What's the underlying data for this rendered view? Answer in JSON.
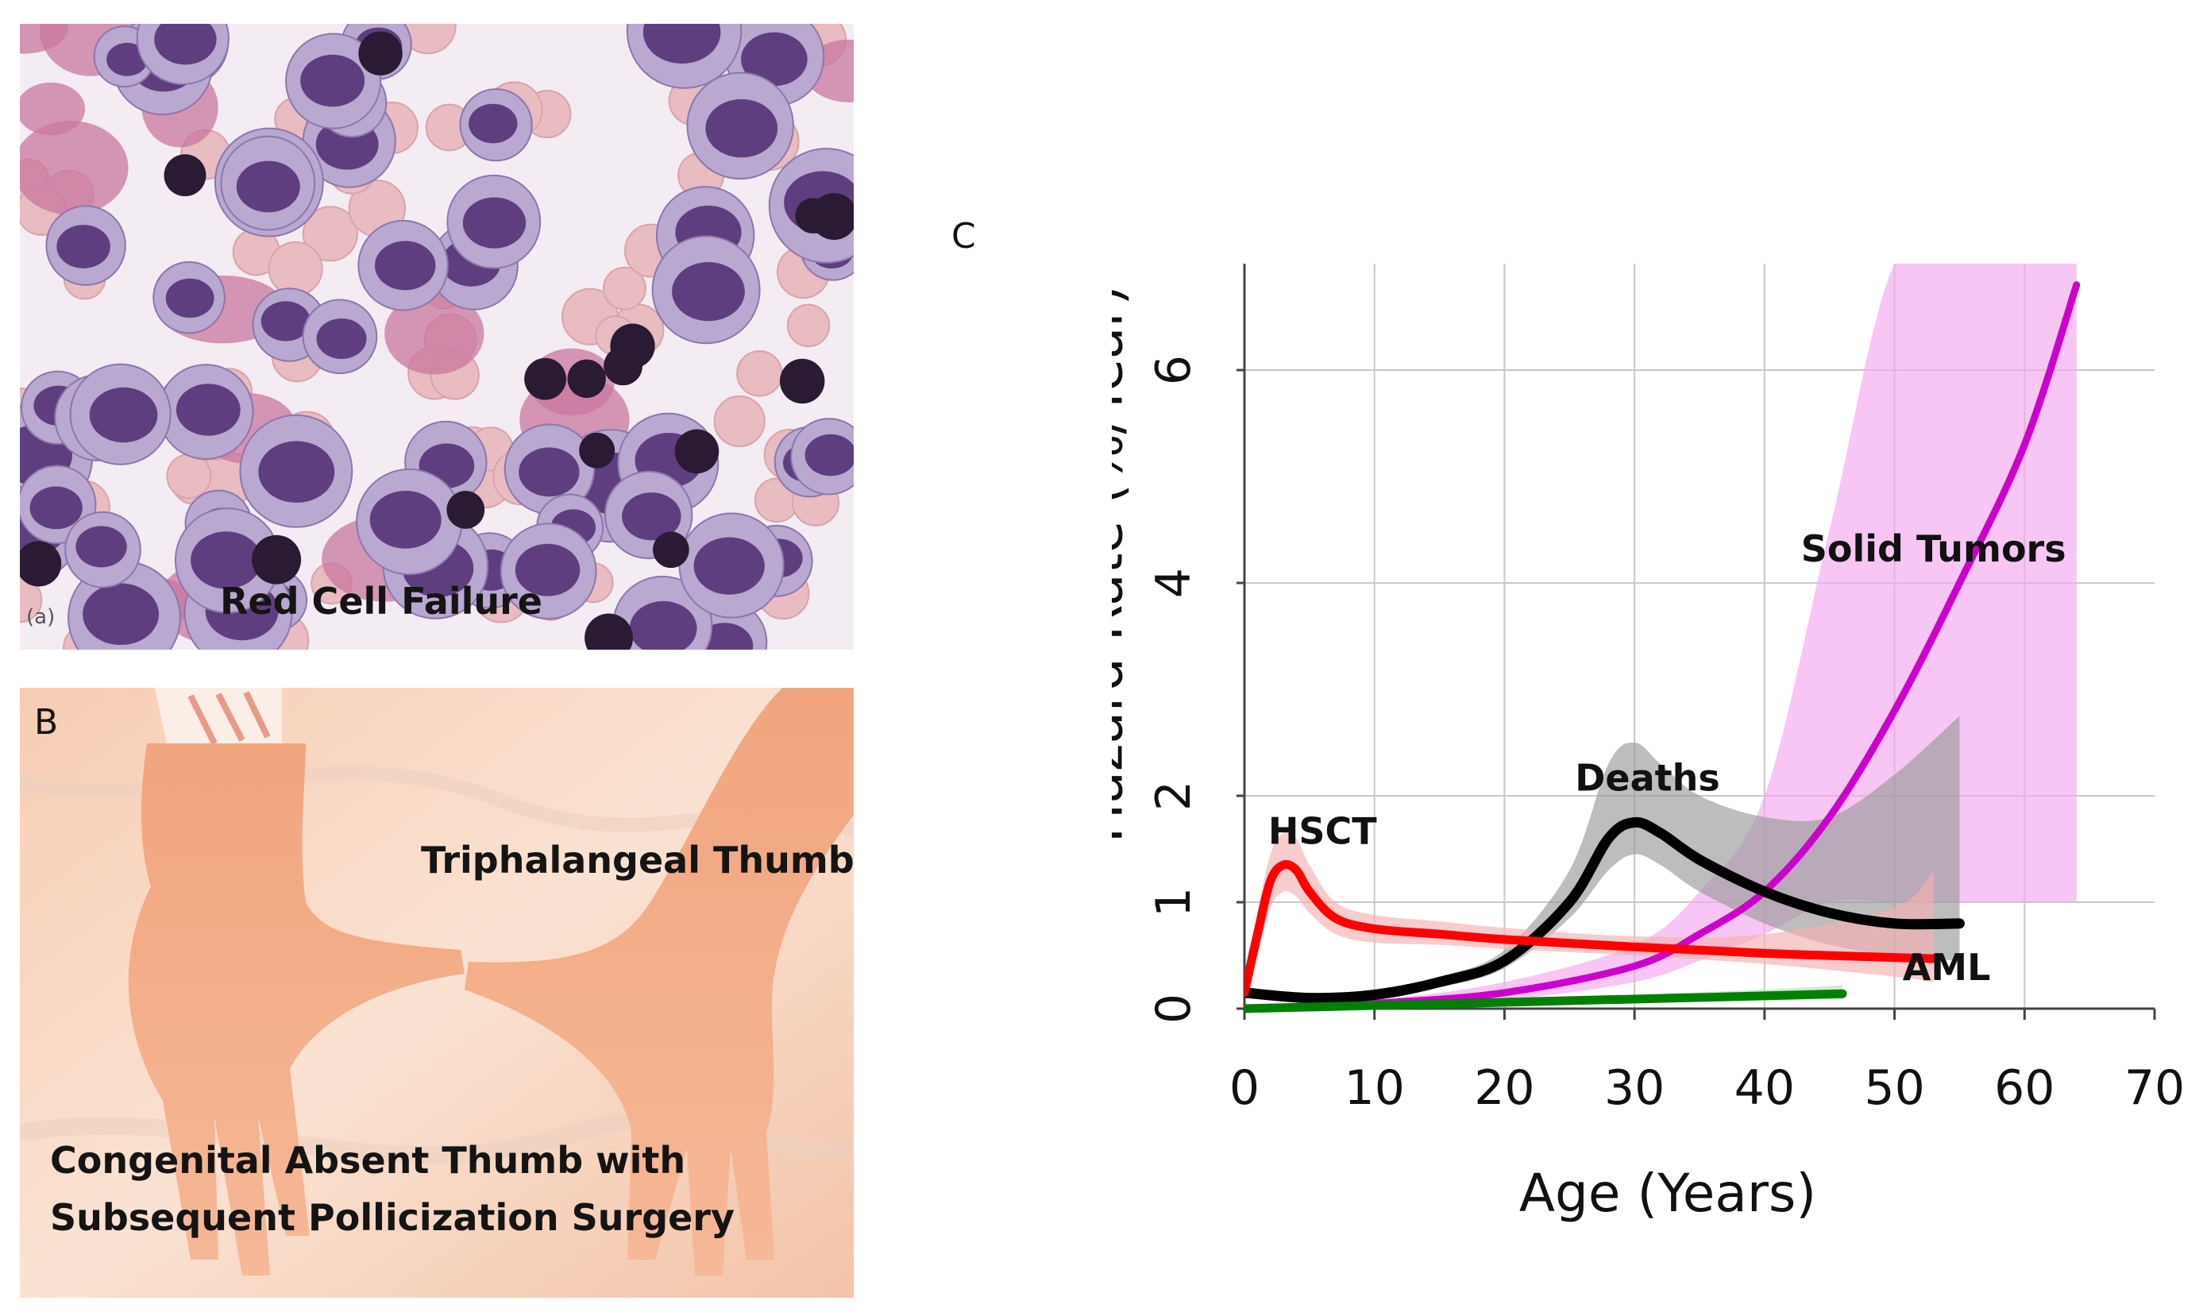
{
  "panels": {
    "a": {
      "letter": "A",
      "sublabel": "(a)",
      "caption": "Red Cell Failure"
    },
    "b": {
      "letter": "B",
      "caption_top": "Triphalangeal Thumb",
      "caption_bottom_1": "Congenital Absent Thumb with",
      "caption_bottom_2": "Subsequent Pollicization Surgery"
    },
    "c": {
      "letter": "C"
    }
  },
  "chart_data": {
    "type": "line",
    "xlabel": "Age (Years)",
    "ylabel": "Hazard Rate (%/Year)",
    "xlim": [
      0,
      70
    ],
    "x_ticks": [
      0,
      10,
      20,
      30,
      40,
      50,
      60,
      70
    ],
    "y_ticks": [
      0,
      1,
      2,
      4,
      6
    ],
    "grid": true,
    "series": [
      {
        "name": "Solid Tumors",
        "color": "#cc00cc",
        "band_color": "#f2a8ee",
        "x": [
          0,
          10,
          20,
          30,
          35,
          40,
          45,
          50,
          55,
          60,
          64
        ],
        "y": [
          0.0,
          0.05,
          0.15,
          0.4,
          0.7,
          1.1,
          1.8,
          2.8,
          4.0,
          5.3,
          6.8
        ],
        "lower": [
          0.0,
          0.02,
          0.08,
          0.25,
          0.45,
          0.7,
          1.0,
          1.0,
          1.0,
          1.0,
          1.0
        ],
        "upper": [
          0.0,
          0.08,
          0.25,
          0.6,
          1.1,
          2.0,
          4.5,
          7.0,
          7.0,
          7.0,
          7.0
        ]
      },
      {
        "name": "Deaths",
        "color": "#000000",
        "band_color": "#9a9a9a",
        "x": [
          0,
          5,
          10,
          15,
          20,
          25,
          28,
          30,
          32,
          35,
          40,
          45,
          50,
          55
        ],
        "y": [
          0.15,
          0.1,
          0.13,
          0.25,
          0.45,
          1.0,
          1.6,
          1.75,
          1.65,
          1.4,
          1.1,
          0.9,
          0.8,
          0.8
        ],
        "lower": [
          0.1,
          0.07,
          0.1,
          0.2,
          0.38,
          0.85,
          1.3,
          1.45,
          1.35,
          1.1,
          0.8,
          0.6,
          0.5,
          0.45
        ],
        "upper": [
          0.2,
          0.14,
          0.18,
          0.3,
          0.55,
          1.3,
          2.3,
          2.5,
          2.3,
          2.0,
          1.8,
          1.8,
          2.2,
          2.75
        ]
      },
      {
        "name": "HSCT",
        "color": "#ff0000",
        "band_color": "#f5b0b0",
        "x": [
          0,
          1,
          2,
          3,
          4,
          5,
          7,
          10,
          15,
          20,
          30,
          40,
          50,
          53
        ],
        "y": [
          0.15,
          0.7,
          1.2,
          1.35,
          1.3,
          1.1,
          0.85,
          0.75,
          0.7,
          0.65,
          0.58,
          0.52,
          0.48,
          0.47
        ],
        "lower": [
          0.1,
          0.5,
          0.95,
          1.1,
          1.05,
          0.9,
          0.7,
          0.62,
          0.6,
          0.56,
          0.5,
          0.42,
          0.3,
          0.25
        ],
        "upper": [
          0.2,
          0.9,
          1.45,
          1.65,
          1.6,
          1.35,
          1.0,
          0.88,
          0.82,
          0.76,
          0.68,
          0.7,
          0.95,
          1.3
        ]
      },
      {
        "name": "AML",
        "color": "#008000",
        "band_color": "#b8e0b8",
        "x": [
          0,
          10,
          20,
          30,
          40,
          46
        ],
        "y": [
          0.0,
          0.03,
          0.06,
          0.09,
          0.12,
          0.14
        ],
        "lower": [
          0.0,
          0.02,
          0.04,
          0.06,
          0.08,
          0.09
        ],
        "upper": [
          0.0,
          0.05,
          0.09,
          0.13,
          0.18,
          0.22
        ]
      }
    ],
    "annotations": [
      {
        "text": "HSCT",
        "x": 6,
        "y": 1.55
      },
      {
        "text": "Deaths",
        "x": 31,
        "y": 2.05
      },
      {
        "text": "Solid Tumors",
        "x": 53,
        "y": 4.2
      },
      {
        "text": "AML",
        "x": 54,
        "y": 0.27
      }
    ]
  }
}
